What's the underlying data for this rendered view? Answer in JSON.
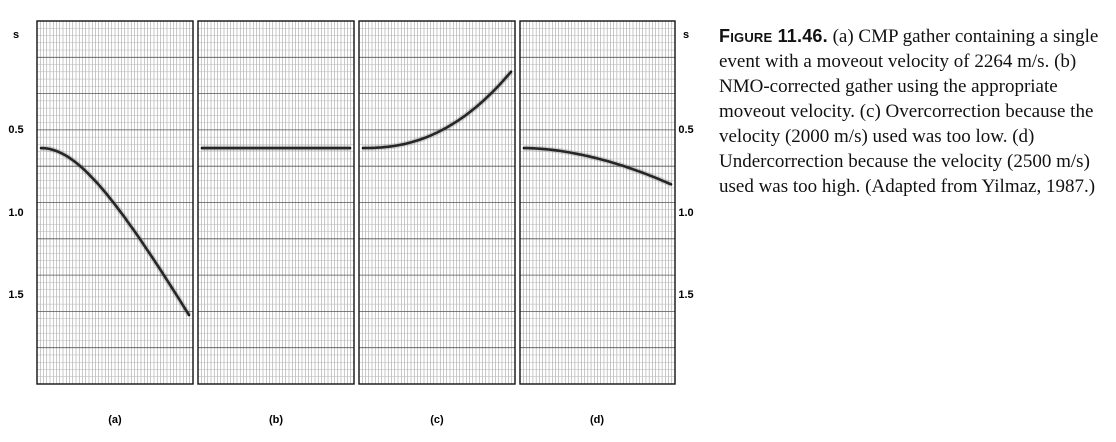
{
  "figure": {
    "axis_unit": "s",
    "y_ticks": [
      "0.5",
      "1.0",
      "1.5"
    ],
    "tick_values": [
      0.5,
      1.0,
      1.5
    ],
    "time_range": [
      0.0,
      2.0
    ],
    "trace_count": 48,
    "panels": [
      {
        "label": "(a)",
        "kind": "NMO hyperbola",
        "t0": 0.7,
        "t_end": 1.62,
        "shape": "concave-down moveout"
      },
      {
        "label": "(b)",
        "kind": "flat",
        "t0": 0.7,
        "t_end": 0.7,
        "shape": "flat"
      },
      {
        "label": "(c)",
        "kind": "overcorrected",
        "t0": 0.7,
        "t_end": 0.28,
        "shape": "curves up"
      },
      {
        "label": "(d)",
        "kind": "undercorrected",
        "t0": 0.7,
        "t_end": 0.9,
        "shape": "curves down"
      }
    ]
  },
  "caption": {
    "figure_word": "Figure",
    "figure_number": "11.46.",
    "text": "(a) CMP gather containing a single event with a moveout velocity of 2264 m/s. (b) NMO-corrected gather using the appropriate moveout velocity. (c) Overcorrection because the velocity (2000 m/s) used was too low. (d) Undercorrection because the velocity (2500 m/s) used was too high. (Adapted from Yilmaz, 1987.)"
  }
}
